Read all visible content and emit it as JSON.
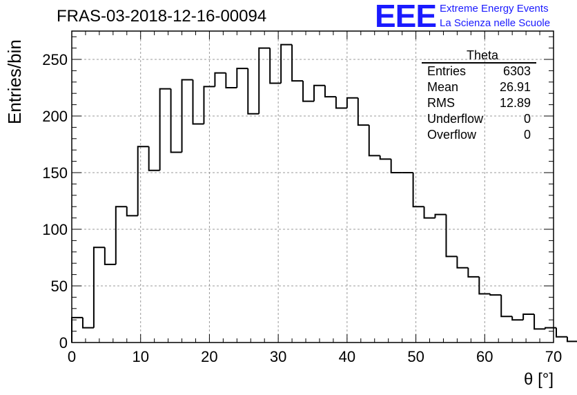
{
  "title": "FRAS-03-2018-12-16-00094",
  "logo": {
    "mark": "EEE",
    "line1": "Extreme Energy Events",
    "line2": "La Scienza nelle Scuole",
    "color": "#1a1aff"
  },
  "stats": {
    "title": "Theta",
    "rows": [
      {
        "label": "Entries",
        "value": "6303"
      },
      {
        "label": "Mean",
        "value": "26.91"
      },
      {
        "label": "RMS",
        "value": "12.89"
      },
      {
        "label": "Underflow",
        "value": "0"
      },
      {
        "label": "Overflow",
        "value": "0"
      }
    ]
  },
  "chart_data": {
    "type": "bar",
    "histogram": true,
    "xlabel": "θ [°]",
    "ylabel": "Entries/bin",
    "xlim": [
      0,
      70
    ],
    "ylim": [
      0,
      275
    ],
    "grid": true,
    "xticks": [
      0,
      10,
      20,
      30,
      40,
      50,
      60,
      70
    ],
    "yticks": [
      0,
      50,
      100,
      150,
      200,
      250
    ],
    "bin_width": 1.6,
    "bin_edges_start": 0,
    "values": [
      22,
      13,
      84,
      69,
      120,
      112,
      173,
      152,
      224,
      168,
      232,
      193,
      226,
      238,
      225,
      242,
      202,
      260,
      229,
      263,
      231,
      213,
      227,
      217,
      207,
      216,
      192,
      165,
      162,
      150,
      150,
      120,
      110,
      113,
      76,
      66,
      58,
      43,
      42,
      23,
      20,
      25,
      12,
      13,
      5,
      1,
      0,
      0
    ]
  }
}
